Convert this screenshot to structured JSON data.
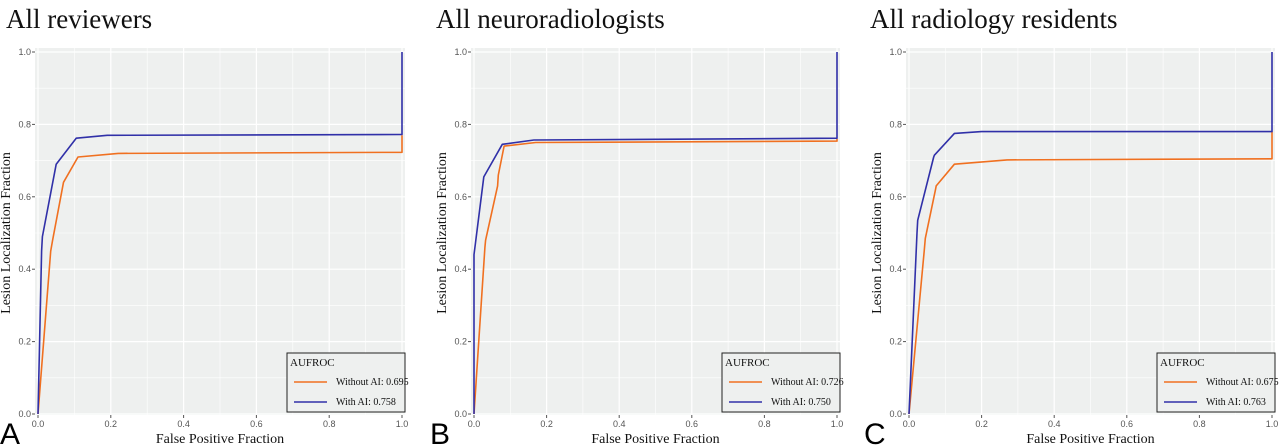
{
  "chart_data": [
    {
      "type": "line",
      "panel_label": "A",
      "title": "All reviewers",
      "xlabel": "False Positive Fraction",
      "ylabel": "Lesion Localization Fraction",
      "xlim": [
        0,
        1
      ],
      "ylim": [
        0,
        1
      ],
      "xticks": [
        "0.0",
        "0.2",
        "0.4",
        "0.6",
        "0.8",
        "1.0"
      ],
      "yticks": [
        "0.0",
        "0.2",
        "0.4",
        "0.6",
        "0.8",
        "1.0"
      ],
      "grid": true,
      "legend": {
        "title": "AUFROC",
        "placement": "bottom-right"
      },
      "series": [
        {
          "name": "Without AI: 0.695",
          "color": "#f07020",
          "x": [
            0,
            0.035,
            0.04,
            0.07,
            0.11,
            0.22,
            1.0,
            1.0
          ],
          "y": [
            0,
            0.45,
            0.48,
            0.64,
            0.71,
            0.72,
            0.723,
            0.77
          ]
        },
        {
          "name": "With AI: 0.758",
          "color": "#3030a8",
          "x": [
            0,
            0.01,
            0.012,
            0.05,
            0.105,
            0.19,
            1.0,
            1.0
          ],
          "y": [
            0,
            0.45,
            0.49,
            0.69,
            0.762,
            0.77,
            0.772,
            1.0
          ]
        }
      ]
    },
    {
      "type": "line",
      "panel_label": "B",
      "title": "All neuroradiologists",
      "xlabel": "False Positive Fraction",
      "ylabel": "Lesion Localization Fraction",
      "xlim": [
        0,
        1
      ],
      "ylim": [
        0,
        1
      ],
      "xticks": [
        "0.0",
        "0.2",
        "0.4",
        "0.6",
        "0.8",
        "1.0"
      ],
      "yticks": [
        "0.0",
        "0.2",
        "0.4",
        "0.6",
        "0.8",
        "1.0"
      ],
      "grid": true,
      "legend": {
        "title": "AUFROC",
        "placement": "bottom-right"
      },
      "series": [
        {
          "name": "Without AI: 0.726",
          "color": "#f07020",
          "x": [
            0,
            0.03,
            0.032,
            0.065,
            0.067,
            0.083,
            0.17,
            1.0,
            1.0
          ],
          "y": [
            0,
            0.46,
            0.48,
            0.63,
            0.66,
            0.74,
            0.75,
            0.754,
            0.76
          ]
        },
        {
          "name": "With AI: 0.750",
          "color": "#3030a8",
          "x": [
            0,
            0.0,
            0.027,
            0.078,
            0.165,
            1.0,
            1.0
          ],
          "y": [
            0,
            0.44,
            0.655,
            0.745,
            0.757,
            0.762,
            1.0
          ]
        }
      ]
    },
    {
      "type": "line",
      "panel_label": "C",
      "title": "All radiology residents",
      "xlabel": "False Positive Fraction",
      "ylabel": "Lesion Localization Fraction",
      "xlim": [
        0,
        1
      ],
      "ylim": [
        0,
        1
      ],
      "xticks": [
        "0.0",
        "0.2",
        "0.4",
        "0.6",
        "0.8",
        "1.0"
      ],
      "yticks": [
        "0.0",
        "0.2",
        "0.4",
        "0.6",
        "0.8",
        "1.0"
      ],
      "grid": true,
      "legend": {
        "title": "AUFROC",
        "placement": "bottom-right"
      },
      "series": [
        {
          "name": "Without AI: 0.675",
          "color": "#f07020",
          "x": [
            0,
            0.042,
            0.045,
            0.073,
            0.075,
            0.125,
            0.27,
            1.0,
            1.0
          ],
          "y": [
            0,
            0.45,
            0.485,
            0.62,
            0.63,
            0.69,
            0.702,
            0.705,
            0.78
          ]
        },
        {
          "name": "With AI: 0.763",
          "color": "#3030a8",
          "x": [
            0,
            0.022,
            0.024,
            0.068,
            0.07,
            0.125,
            0.2,
            1.0,
            1.0
          ],
          "y": [
            0,
            0.5,
            0.535,
            0.71,
            0.715,
            0.775,
            0.78,
            0.78,
            1.0
          ]
        }
      ]
    }
  ]
}
